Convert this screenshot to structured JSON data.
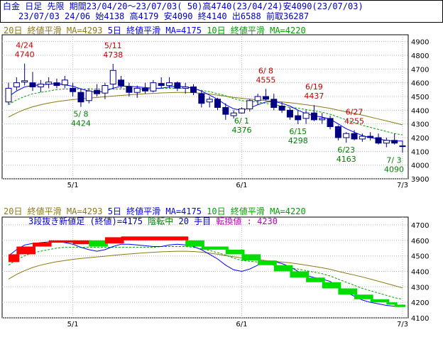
{
  "header": {
    "line1": "白金 日足 先限 期間23/04/20～23/07/03( 50)高4740(23/04/24)安4090(23/07/03)",
    "line2": "23/07/03 24/06 始4138 高4179 安4090 終4140 出6588 前取36287"
  },
  "colors": {
    "ma20": "#8b7a18",
    "ma5": "#0000ff",
    "ma10": "#00a000",
    "bear": "#000080",
    "bull_edge": "#000080",
    "up_ann": "#c00000",
    "down_ann": "#008000",
    "sansin_up": "#ff0000",
    "sansin_down": "#00dd00",
    "sansin_now": "#ff00ff"
  },
  "chart_data": [
    {
      "type": "candlestick",
      "title": "",
      "legend": [
        {
          "text": "20日 終値平滑 MA=4293",
          "series": "ma20"
        },
        {
          "text": "5日 終値平滑 MA=4175",
          "series": "ma5"
        },
        {
          "text": "10日 終値平滑 MA=4220",
          "series": "ma10"
        }
      ],
      "ylim": [
        3900,
        4950
      ],
      "yticks": [
        3900,
        4000,
        4100,
        4200,
        4300,
        4400,
        4500,
        4600,
        4700,
        4800,
        4900
      ],
      "xticks": [
        {
          "label": "5/1",
          "index": 8
        },
        {
          "label": "6/1",
          "index": 29
        },
        {
          "label": "7/3",
          "index": 49
        }
      ],
      "candles": [
        [
          4460,
          4600,
          4440,
          4560
        ],
        [
          4570,
          4640,
          4545,
          4600
        ],
        [
          4605,
          4740,
          4580,
          4615
        ],
        [
          4600,
          4680,
          4540,
          4570
        ],
        [
          4570,
          4620,
          4530,
          4590
        ],
        [
          4590,
          4640,
          4560,
          4605
        ],
        [
          4600,
          4630,
          4560,
          4580
        ],
        [
          4585,
          4650,
          4560,
          4620
        ],
        [
          4560,
          4600,
          4500,
          4535
        ],
        [
          4530,
          4560,
          4424,
          4460
        ],
        [
          4470,
          4560,
          4450,
          4540
        ],
        [
          4545,
          4590,
          4500,
          4520
        ],
        [
          4525,
          4600,
          4480,
          4580
        ],
        [
          4590,
          4738,
          4560,
          4690
        ],
        [
          4620,
          4650,
          4560,
          4580
        ],
        [
          4570,
          4600,
          4500,
          4530
        ],
        [
          4530,
          4580,
          4490,
          4560
        ],
        [
          4560,
          4600,
          4520,
          4540
        ],
        [
          4540,
          4620,
          4530,
          4600
        ],
        [
          4595,
          4640,
          4560,
          4580
        ],
        [
          4580,
          4640,
          4560,
          4600
        ],
        [
          4600,
          4610,
          4540,
          4560
        ],
        [
          4560,
          4600,
          4520,
          4570
        ],
        [
          4570,
          4590,
          4510,
          4530
        ],
        [
          4520,
          4540,
          4420,
          4450
        ],
        [
          4460,
          4500,
          4420,
          4480
        ],
        [
          4480,
          4490,
          4400,
          4420
        ],
        [
          4420,
          4450,
          4330,
          4370
        ],
        [
          4360,
          4400,
          4340,
          4380
        ],
        [
          4380,
          4420,
          4376,
          4410
        ],
        [
          4410,
          4480,
          4390,
          4470
        ],
        [
          4470,
          4520,
          4440,
          4500
        ],
        [
          4500,
          4555,
          4470,
          4480
        ],
        [
          4480,
          4520,
          4400,
          4420
        ],
        [
          4430,
          4460,
          4380,
          4400
        ],
        [
          4400,
          4420,
          4330,
          4350
        ],
        [
          4360,
          4400,
          4298,
          4330
        ],
        [
          4340,
          4400,
          4300,
          4380
        ],
        [
          4380,
          4437,
          4320,
          4330
        ],
        [
          4330,
          4380,
          4300,
          4340
        ],
        [
          4340,
          4360,
          4260,
          4280
        ],
        [
          4280,
          4290,
          4180,
          4200
        ],
        [
          4200,
          4240,
          4163,
          4230
        ],
        [
          4230,
          4255,
          4180,
          4190
        ],
        [
          4190,
          4230,
          4170,
          4210
        ],
        [
          4210,
          4240,
          4180,
          4200
        ],
        [
          4200,
          4230,
          4150,
          4160
        ],
        [
          4160,
          4200,
          4130,
          4180
        ],
        [
          4180,
          4230,
          4150,
          4160
        ],
        [
          4138,
          4179,
          4090,
          4140
        ]
      ],
      "ma5": [
        4500,
        4540,
        4570,
        4580,
        4585,
        4590,
        4595,
        4585,
        4575,
        4555,
        4540,
        4530,
        4540,
        4560,
        4575,
        4575,
        4570,
        4565,
        4560,
        4560,
        4570,
        4575,
        4570,
        4560,
        4540,
        4510,
        4480,
        4440,
        4410,
        4400,
        4415,
        4440,
        4460,
        4465,
        4450,
        4430,
        4400,
        4375,
        4360,
        4350,
        4335,
        4300,
        4265,
        4240,
        4215,
        4200,
        4190,
        4180,
        4175,
        4175
      ],
      "ma10": [
        4440,
        4475,
        4500,
        4520,
        4530,
        4540,
        4550,
        4555,
        4555,
        4555,
        4555,
        4555,
        4555,
        4555,
        4555,
        4555,
        4555,
        4555,
        4555,
        4560,
        4560,
        4560,
        4560,
        4555,
        4545,
        4535,
        4520,
        4505,
        4485,
        4470,
        4465,
        4460,
        4450,
        4440,
        4430,
        4420,
        4415,
        4405,
        4395,
        4385,
        4370,
        4350,
        4330,
        4310,
        4290,
        4275,
        4260,
        4245,
        4230,
        4220
      ],
      "ma20": [
        4350,
        4380,
        4405,
        4425,
        4440,
        4452,
        4462,
        4470,
        4477,
        4483,
        4488,
        4493,
        4498,
        4503,
        4508,
        4512,
        4516,
        4520,
        4523,
        4526,
        4528,
        4530,
        4530,
        4528,
        4524,
        4518,
        4510,
        4502,
        4494,
        4487,
        4481,
        4475,
        4470,
        4465,
        4460,
        4455,
        4448,
        4440,
        4432,
        4423,
        4413,
        4400,
        4388,
        4376,
        4364,
        4350,
        4336,
        4322,
        4308,
        4293
      ],
      "highs": [
        {
          "label": "4/24",
          "value": "4740",
          "index": 2
        },
        {
          "label": "5/11",
          "value": "4738",
          "index": 13
        },
        {
          "label": "6/ 8",
          "value": "4555",
          "index": 32
        },
        {
          "label": "6/19",
          "value": "4437",
          "index": 38
        },
        {
          "label": "6/27",
          "value": "4255",
          "index": 43
        }
      ],
      "lows": [
        {
          "label": "5/ 8",
          "value": "4424",
          "index": 9
        },
        {
          "label": "6/ 1",
          "value": "4376",
          "index": 29
        },
        {
          "label": "6/15",
          "value": "4298",
          "index": 36
        },
        {
          "label": "6/23",
          "value": "4163",
          "index": 42
        },
        {
          "label": "7/ 3",
          "value": "4090",
          "index": 49
        }
      ]
    },
    {
      "type": "three-line-break",
      "legend": [
        {
          "text": "20日 終値平滑 MA=4293",
          "series": "ma20"
        },
        {
          "text": "5日 終値平滑 MA=4175",
          "series": "ma5"
        },
        {
          "text": "10日 終値平滑 MA=4220",
          "series": "ma10"
        }
      ],
      "info": [
        {
          "text": "3段抜き新値足 (終値)=4175",
          "color": "#0000c0"
        },
        {
          "text": "陰転中",
          "color": "#008000"
        },
        {
          "text": "20 手目",
          "color": "#0000c0"
        },
        {
          "text": "転換値 : 4230",
          "color": "#c000c0"
        }
      ],
      "ylim": [
        4100,
        4750
      ],
      "yticks": [
        4100,
        4200,
        4300,
        4400,
        4500,
        4600,
        4700
      ],
      "xticks": [
        {
          "label": "5/1",
          "index": 8
        },
        {
          "label": "6/1",
          "index": 29
        },
        {
          "label": "7/3",
          "index": 49
        }
      ],
      "segments": [
        {
          "from": 0,
          "to": 1,
          "lo": 4460,
          "hi": 4510,
          "dir": "up"
        },
        {
          "from": 1,
          "to": 3,
          "lo": 4510,
          "hi": 4560,
          "dir": "up"
        },
        {
          "from": 3,
          "to": 5,
          "lo": 4560,
          "hi": 4585,
          "dir": "up"
        },
        {
          "from": 5,
          "to": 8,
          "lo": 4585,
          "hi": 4600,
          "dir": "up"
        },
        {
          "from": 8,
          "to": 10,
          "lo": 4575,
          "hi": 4600,
          "dir": "up"
        },
        {
          "from": 10,
          "to": 12,
          "lo": 4560,
          "hi": 4600,
          "dir": "down"
        },
        {
          "from": 12,
          "to": 14,
          "lo": 4580,
          "hi": 4620,
          "dir": "up"
        },
        {
          "from": 14,
          "to": 22,
          "lo": 4600,
          "hi": 4625,
          "dir": "up"
        },
        {
          "from": 22,
          "to": 24,
          "lo": 4560,
          "hi": 4600,
          "dir": "down"
        },
        {
          "from": 24,
          "to": 27,
          "lo": 4540,
          "hi": 4560,
          "dir": "down"
        },
        {
          "from": 27,
          "to": 29,
          "lo": 4510,
          "hi": 4540,
          "dir": "down"
        },
        {
          "from": 29,
          "to": 31,
          "lo": 4470,
          "hi": 4510,
          "dir": "down"
        },
        {
          "from": 31,
          "to": 33,
          "lo": 4440,
          "hi": 4470,
          "dir": "down"
        },
        {
          "from": 33,
          "to": 35,
          "lo": 4400,
          "hi": 4440,
          "dir": "down"
        },
        {
          "from": 35,
          "to": 37,
          "lo": 4360,
          "hi": 4400,
          "dir": "down"
        },
        {
          "from": 37,
          "to": 39,
          "lo": 4330,
          "hi": 4360,
          "dir": "down"
        },
        {
          "from": 39,
          "to": 41,
          "lo": 4290,
          "hi": 4330,
          "dir": "down"
        },
        {
          "from": 41,
          "to": 43,
          "lo": 4250,
          "hi": 4290,
          "dir": "down"
        },
        {
          "from": 43,
          "to": 45,
          "lo": 4220,
          "hi": 4250,
          "dir": "down"
        },
        {
          "from": 45,
          "to": 47,
          "lo": 4200,
          "hi": 4220,
          "dir": "down"
        },
        {
          "from": 47,
          "to": 48,
          "lo": 4185,
          "hi": 4200,
          "dir": "down"
        },
        {
          "from": 48,
          "to": 49,
          "lo": 4170,
          "hi": 4185,
          "dir": "down"
        }
      ]
    }
  ]
}
